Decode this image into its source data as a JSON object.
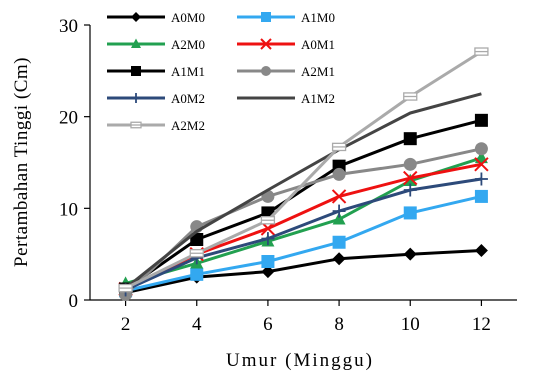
{
  "chart_data": {
    "type": "line",
    "xlabel": "Umur (Minggu)",
    "ylabel": "Pertambahan Tinggi (Cm)",
    "x": [
      2,
      4,
      6,
      8,
      10,
      12
    ],
    "xlim": [
      1,
      13
    ],
    "ylim": [
      0,
      30
    ],
    "yticks": [
      0,
      10,
      20,
      30
    ],
    "grid": false,
    "legend_position": "top-left",
    "series": [
      {
        "name": "A0M0",
        "values": [
          0.8,
          2.5,
          3.1,
          4.5,
          5.0,
          5.4
        ],
        "color": "#000000",
        "marker": "diamond"
      },
      {
        "name": "A1M0",
        "values": [
          1.0,
          2.8,
          4.2,
          6.3,
          9.5,
          11.3
        ],
        "color": "#33a8f0",
        "marker": "square"
      },
      {
        "name": "A2M0",
        "values": [
          1.8,
          4.0,
          6.4,
          8.8,
          13.0,
          15.5
        ],
        "color": "#22a050",
        "marker": "triangle"
      },
      {
        "name": "A0M1",
        "values": [
          1.2,
          5.0,
          7.8,
          11.3,
          13.3,
          14.8
        ],
        "color": "#ee1111",
        "marker": "x"
      },
      {
        "name": "A1M1",
        "values": [
          1.2,
          6.6,
          9.5,
          14.6,
          17.6,
          19.6
        ],
        "color": "#000000",
        "marker": "square"
      },
      {
        "name": "A2M1",
        "values": [
          0.6,
          8.0,
          11.3,
          13.7,
          14.8,
          16.5
        ],
        "color": "#888888",
        "marker": "circle"
      },
      {
        "name": "A0M2",
        "values": [
          1.1,
          4.6,
          6.7,
          9.7,
          12.0,
          13.2
        ],
        "color": "#2d4a7a",
        "marker": "plus"
      },
      {
        "name": "A1M2",
        "values": [
          1.3,
          7.5,
          12.0,
          16.4,
          20.4,
          22.5
        ],
        "color": "#444444",
        "marker": "none"
      },
      {
        "name": "A2M2",
        "values": [
          1.3,
          5.1,
          8.7,
          16.7,
          22.2,
          27.1
        ],
        "color": "#aaaaaa",
        "marker": "dash"
      }
    ]
  }
}
